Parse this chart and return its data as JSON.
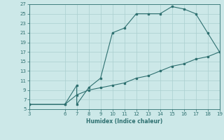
{
  "xlabel": "Humidex (Indice chaleur)",
  "ylabel": "",
  "xlim": [
    3,
    19
  ],
  "ylim": [
    5,
    27
  ],
  "xticks": [
    3,
    6,
    7,
    8,
    9,
    10,
    11,
    12,
    13,
    14,
    15,
    16,
    17,
    18,
    19
  ],
  "yticks": [
    5,
    7,
    9,
    11,
    13,
    15,
    17,
    19,
    21,
    23,
    25,
    27
  ],
  "line_color": "#2e7070",
  "marker_color": "#2e7070",
  "bg_color": "#cce8e8",
  "grid_color": "#aacfcf",
  "series1_x": [
    3,
    6,
    7,
    7,
    8,
    9,
    10,
    11,
    12,
    13,
    14,
    15,
    16,
    17,
    18,
    19
  ],
  "series1_y": [
    6,
    6,
    10,
    6,
    9.5,
    11.5,
    21,
    22,
    25,
    25,
    25,
    26.5,
    26,
    25,
    21,
    17
  ],
  "series2_x": [
    3,
    6,
    7,
    8,
    9,
    10,
    11,
    12,
    13,
    14,
    15,
    16,
    17,
    18,
    19
  ],
  "series2_y": [
    6,
    6,
    8,
    9,
    9.5,
    10,
    10.5,
    11.5,
    12,
    13,
    14,
    14.5,
    15.5,
    16,
    17
  ]
}
